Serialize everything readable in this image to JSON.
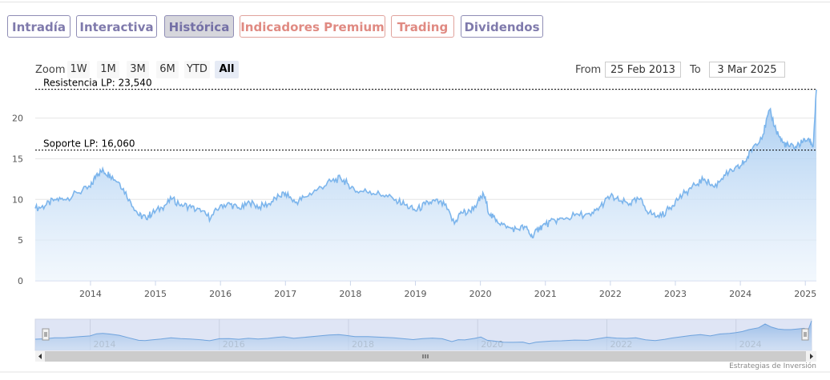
{
  "tabs": [
    {
      "label": "Intradía",
      "style": "purple"
    },
    {
      "label": "Interactiva",
      "style": "purple"
    },
    {
      "label": "Histórica",
      "style": "active"
    },
    {
      "label": "Indicadores Premium",
      "style": "red"
    },
    {
      "label": "Trading",
      "style": "red"
    },
    {
      "label": "Dividendos",
      "style": "purple"
    }
  ],
  "zoom": {
    "label": "Zoom",
    "buttons": [
      "1W",
      "1M",
      "3M",
      "6M",
      "YTD",
      "All"
    ],
    "selected": "All"
  },
  "range": {
    "from_label": "From",
    "from_value": "25 Feb 2013",
    "to_label": "To",
    "to_value": "3 Mar 2025"
  },
  "credit": "Estrategias de Inversión",
  "colors": {
    "line": "#7cb5ec",
    "fill_top": "#9ec6ef",
    "fill_bottom": "#eaf3fc",
    "tab_purple": "#7f7aac",
    "tab_red": "#e08a82"
  },
  "chart_data": {
    "type": "area",
    "title": "",
    "xlabel": "",
    "ylabel": "",
    "ylim": [
      0,
      23.5
    ],
    "xlim": [
      2013.15,
      2025.17
    ],
    "yticks": [
      0,
      5,
      10,
      15,
      20
    ],
    "xticks": [
      "2014",
      "2015",
      "2016",
      "2017",
      "2018",
      "2019",
      "2020",
      "2021",
      "2022",
      "2023",
      "2024",
      "2025"
    ],
    "navigator_xticks": [
      "2014",
      "2016",
      "2018",
      "2020",
      "2022",
      "2024"
    ],
    "grid": true,
    "reference_lines": [
      {
        "label": "Resistencia LP: 23,540",
        "value": 23.54
      },
      {
        "label": "Soporte LP: 16,060",
        "value": 16.06
      }
    ],
    "series": [
      {
        "x": [
          2013.15,
          2013.3,
          2013.45,
          2013.6,
          2013.8,
          2014.0,
          2014.1,
          2014.2,
          2014.3,
          2014.45,
          2014.6,
          2014.75,
          2014.85,
          2014.95,
          2015.1,
          2015.25,
          2015.4,
          2015.55,
          2015.7,
          2015.85,
          2016.0,
          2016.15,
          2016.3,
          2016.45,
          2016.6,
          2016.75,
          2016.9,
          2017.0,
          2017.15,
          2017.3,
          2017.5,
          2017.7,
          2017.85,
          2017.95,
          2018.1,
          2018.3,
          2018.5,
          2018.7,
          2018.85,
          2019.0,
          2019.15,
          2019.3,
          2019.45,
          2019.6,
          2019.7,
          2019.8,
          2019.95,
          2020.05,
          2020.15,
          2020.25,
          2020.4,
          2020.55,
          2020.7,
          2020.8,
          2020.9,
          2021.0,
          2021.15,
          2021.3,
          2021.5,
          2021.7,
          2021.85,
          2022.0,
          2022.15,
          2022.3,
          2022.45,
          2022.6,
          2022.75,
          2022.9,
          2023.0,
          2023.15,
          2023.3,
          2023.45,
          2023.6,
          2023.75,
          2023.9,
          2024.0,
          2024.1,
          2024.2,
          2024.35,
          2024.45,
          2024.55,
          2024.65,
          2024.75,
          2024.85,
          2024.95,
          2025.05,
          2025.12,
          2025.17
        ],
        "values": [
          8.9,
          9.2,
          10.0,
          10.0,
          10.8,
          11.5,
          13.2,
          13.5,
          13.0,
          12.0,
          10.0,
          8.0,
          7.8,
          8.3,
          9.0,
          10.0,
          9.4,
          9.0,
          8.5,
          7.7,
          9.3,
          9.4,
          8.8,
          9.6,
          9.1,
          9.5,
          10.4,
          10.8,
          9.6,
          10.3,
          11.3,
          12.2,
          12.6,
          12.0,
          11.0,
          11.0,
          10.5,
          10.0,
          9.3,
          8.6,
          9.4,
          9.8,
          9.3,
          7.0,
          8.5,
          8.3,
          9.5,
          10.6,
          8.0,
          7.5,
          6.5,
          6.4,
          6.6,
          5.3,
          6.5,
          6.9,
          7.4,
          7.6,
          8.2,
          8.0,
          9.2,
          10.4,
          9.8,
          9.5,
          10.0,
          8.4,
          7.8,
          8.8,
          9.8,
          10.8,
          11.8,
          12.5,
          11.5,
          13.0,
          13.5,
          14.1,
          15.0,
          16.5,
          18.0,
          21.0,
          18.5,
          17.0,
          16.5,
          16.5,
          17.0,
          17.5,
          16.5,
          23.5
        ]
      }
    ]
  }
}
